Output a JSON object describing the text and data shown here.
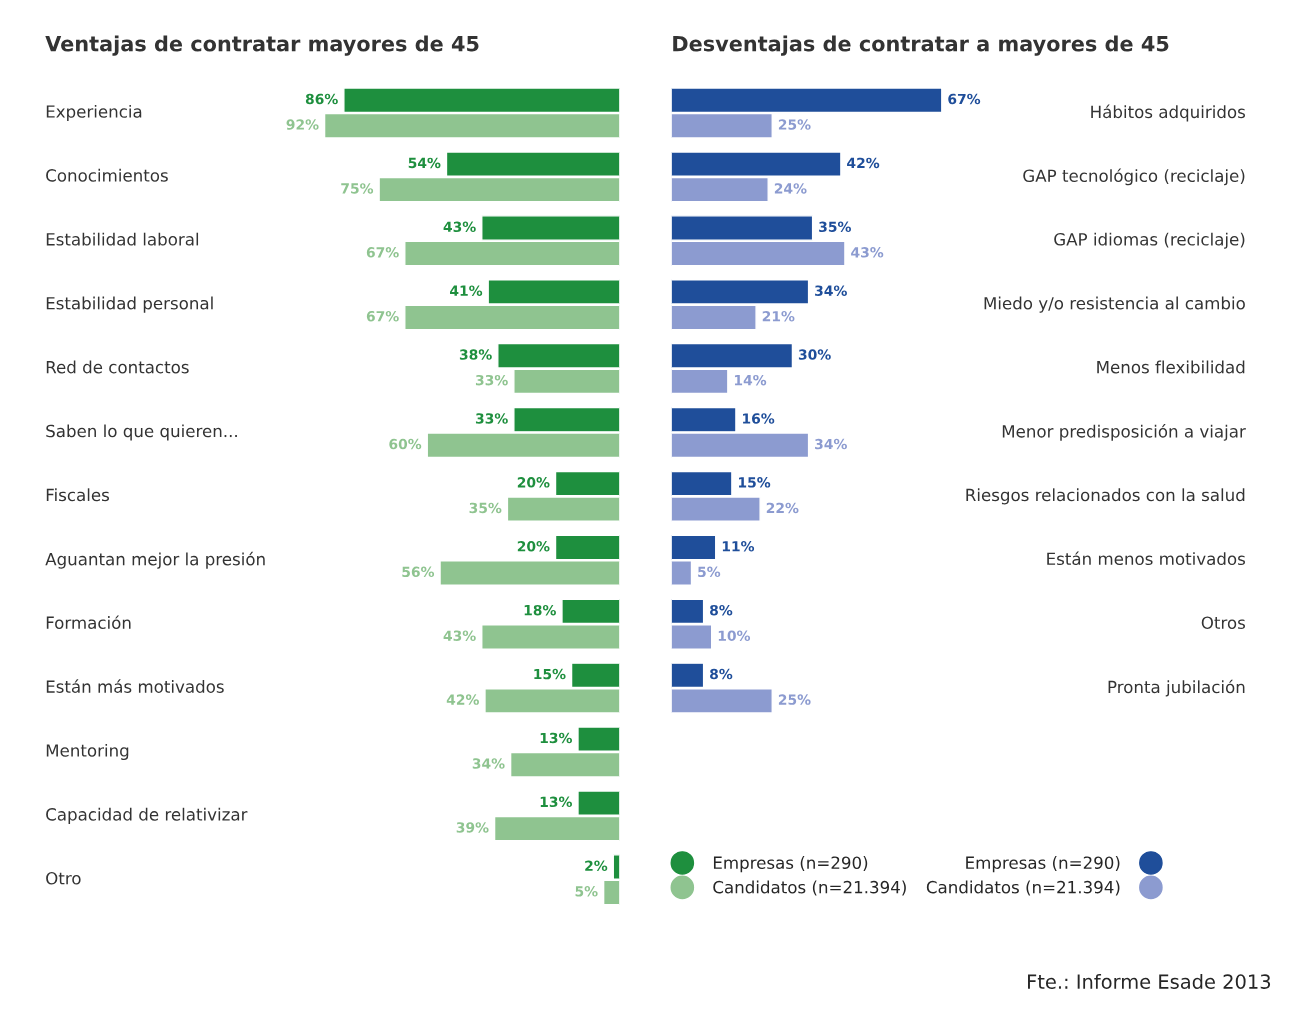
{
  "chart_data": [
    {
      "type": "bar",
      "orientation": "horizontal",
      "title": "Ventajas de contratar mayores de 45",
      "categories": [
        "Experiencia",
        "Conocimientos",
        "Estabilidad laboral",
        "Estabilidad personal",
        "Red de contactos",
        "Saben lo que quieren...",
        "Fiscales",
        "Aguantan mejor la presión",
        "Formación",
        "Están más motivados",
        "Mentoring",
        "Capacidad de relativizar",
        "Otro"
      ],
      "tick_labels": "y",
      "legend": "right",
      "data_labels": true,
      "series": [
        {
          "name": "Empresas (n=290)",
          "color": "#1e8f3e",
          "values": [
            86,
            54,
            43,
            41,
            38,
            33,
            20,
            20,
            18,
            15,
            13,
            13,
            2
          ],
          "value_labels": [
            "86%",
            "54%",
            "43%",
            "41%",
            "38%",
            "33%",
            "20%",
            "20%",
            "18%",
            "15%",
            "13%",
            "13%",
            "2%"
          ]
        },
        {
          "name": "Candidatos (n=21.394)",
          "color": "#8fc490",
          "values": [
            92,
            75,
            67,
            67,
            33,
            60,
            35,
            56,
            43,
            42,
            34,
            39,
            5
          ],
          "value_labels": [
            "92%",
            "75%",
            "67%",
            "67%",
            "33%",
            "60%",
            "35%",
            "56%",
            "43%",
            "42%",
            "34%",
            "39%",
            "5%"
          ]
        }
      ]
    },
    {
      "type": "bar",
      "orientation": "horizontal",
      "title": "Desventajas de contratar a mayores de 45",
      "categories": [
        "Hábitos adquiridos",
        "GAP tecnológico (reciclaje)",
        "GAP idiomas (reciclaje)",
        "Miedo y/o resistencia al cambio",
        "Menos flexibilidad",
        "Menor predisposición a viajar",
        "Riesgos relacionados con la salud",
        "Están menos motivados",
        "Otros",
        "Pronta jubilación"
      ],
      "tick_labels": "y",
      "legend": "bottom right",
      "data_labels": true,
      "annotations": [
        "Fte.: Informe Esade 2013"
      ],
      "series": [
        {
          "name": "Empresas (n=290)",
          "color": "#1f4e9a",
          "values": [
            67,
            42,
            35,
            34,
            30,
            16,
            15,
            11,
            8,
            8
          ],
          "value_labels": [
            "67%",
            "42%",
            "35%",
            "34%",
            "30%",
            "16%",
            "15%",
            "11%",
            "8%",
            "8%"
          ]
        },
        {
          "name": "Candidatos (n=21.394)",
          "color": "#8c9bd0",
          "values": [
            25,
            24,
            43,
            21,
            14,
            34,
            22,
            5,
            10,
            25
          ],
          "value_labels": [
            "25%",
            "24%",
            "43%",
            "21%",
            "14%",
            "34%",
            "22%",
            "5%",
            "10%",
            "25%"
          ]
        }
      ]
    }
  ]
}
